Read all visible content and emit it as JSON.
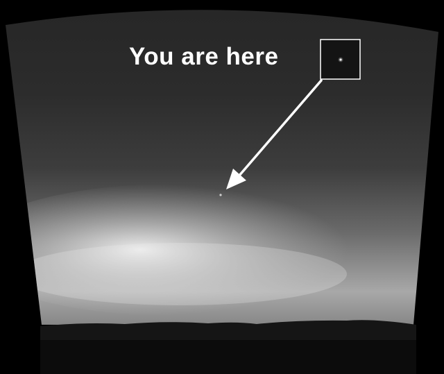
{
  "caption": {
    "text": "You are here"
  },
  "colors": {
    "background": "#000000",
    "sky_top": "#252525",
    "sky_glow": "#e4e4e4",
    "horizon": "#161616",
    "annotation": "#ffffff"
  },
  "icons": {
    "pointer": "arrow-icon",
    "star": "earth-dot-icon"
  }
}
